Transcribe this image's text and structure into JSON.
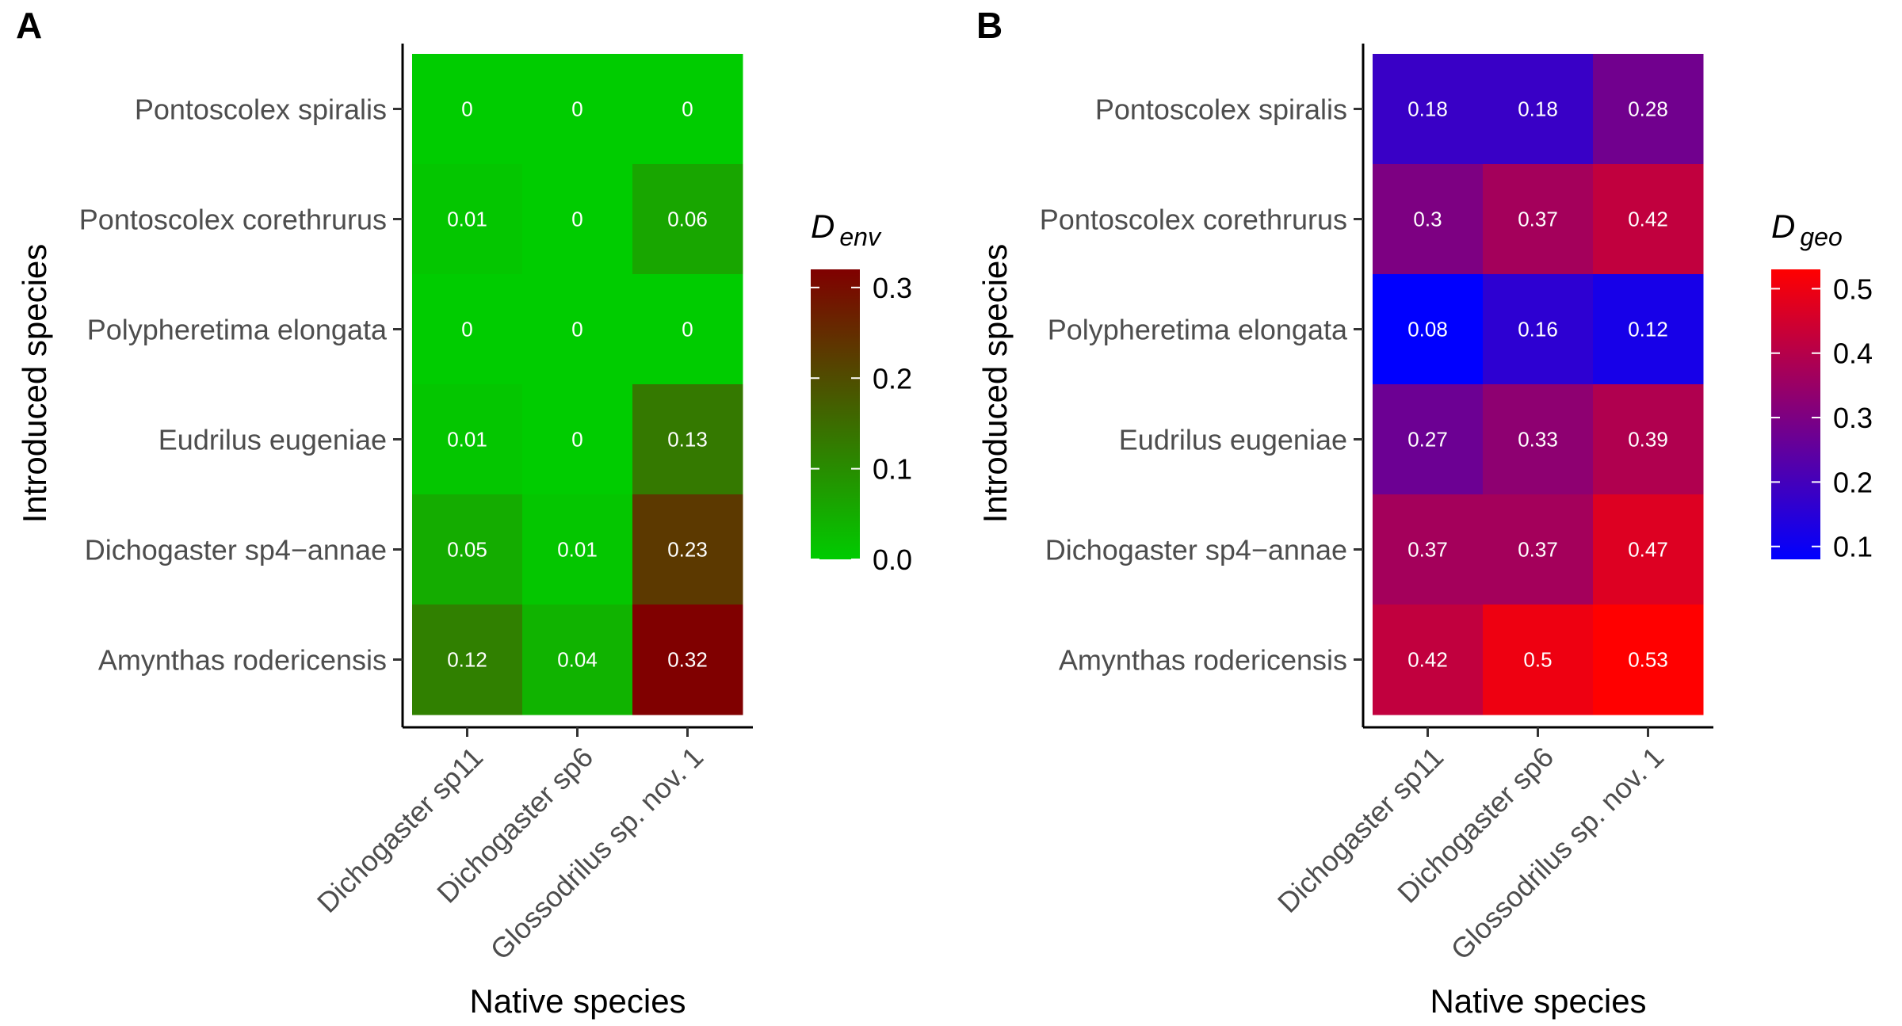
{
  "chart_data": [
    {
      "panel_label": "A",
      "type": "heatmap",
      "ylabel": "Introduced species",
      "xlabel": "Native species",
      "rows": [
        "Pontoscolex spiralis",
        "Pontoscolex corethrurus",
        "Polypheretima elongata",
        "Eudrilus eugeniae",
        "Dichogaster sp4−annae",
        "Amynthas rodericensis"
      ],
      "columns": [
        "Dichogaster sp11",
        "Dichogaster sp6",
        "Glossodrilus sp. nov. 1"
      ],
      "values": [
        [
          0,
          0,
          0
        ],
        [
          0.01,
          0,
          0.06
        ],
        [
          0,
          0,
          0
        ],
        [
          0.01,
          0,
          0.13
        ],
        [
          0.05,
          0.01,
          0.23
        ],
        [
          0.12,
          0.04,
          0.32
        ]
      ],
      "cell_labels": [
        [
          "0",
          "0",
          "0"
        ],
        [
          "0.01",
          "0",
          "0.06"
        ],
        [
          "0",
          "0",
          "0"
        ],
        [
          "0.01",
          "0",
          "0.13"
        ],
        [
          "0.05",
          "0.01",
          "0.23"
        ],
        [
          "0.12",
          "0.04",
          "0.32"
        ]
      ],
      "legend": {
        "title_main": "D",
        "title_sub": "env",
        "range": [
          0,
          0.32
        ],
        "ticks": [
          0,
          0.1,
          0.2,
          0.3
        ],
        "tick_labels": [
          "0.0",
          "0.1",
          "0.2",
          "0.3"
        ],
        "placement": "right"
      },
      "colors": {
        "low": "#00cc00",
        "high": "#800000"
      }
    },
    {
      "panel_label": "B",
      "type": "heatmap",
      "ylabel": "Introduced species",
      "xlabel": "Native species",
      "rows": [
        "Pontoscolex spiralis",
        "Pontoscolex corethrurus",
        "Polypheretima elongata",
        "Eudrilus eugeniae",
        "Dichogaster sp4−annae",
        "Amynthas rodericensis"
      ],
      "columns": [
        "Dichogaster sp11",
        "Dichogaster sp6",
        "Glossodrilus sp. nov. 1"
      ],
      "values": [
        [
          0.18,
          0.18,
          0.28
        ],
        [
          0.3,
          0.37,
          0.42
        ],
        [
          0.08,
          0.16,
          0.12
        ],
        [
          0.27,
          0.33,
          0.39
        ],
        [
          0.37,
          0.37,
          0.47
        ],
        [
          0.42,
          0.5,
          0.53
        ]
      ],
      "cell_labels": [
        [
          "0.18",
          "0.18",
          "0.28"
        ],
        [
          "0.3",
          "0.37",
          "0.42"
        ],
        [
          "0.08",
          "0.16",
          "0.12"
        ],
        [
          "0.27",
          "0.33",
          "0.39"
        ],
        [
          "0.37",
          "0.37",
          "0.47"
        ],
        [
          "0.42",
          "0.5",
          "0.53"
        ]
      ],
      "legend": {
        "title_main": "D",
        "title_sub": "geo",
        "range": [
          0.08,
          0.53
        ],
        "ticks": [
          0.1,
          0.2,
          0.3,
          0.4,
          0.5
        ],
        "tick_labels": [
          "0.1",
          "0.2",
          "0.3",
          "0.4",
          "0.5"
        ],
        "placement": "right"
      },
      "colors": {
        "low": "#0000ff",
        "high": "#ff0000"
      }
    }
  ]
}
